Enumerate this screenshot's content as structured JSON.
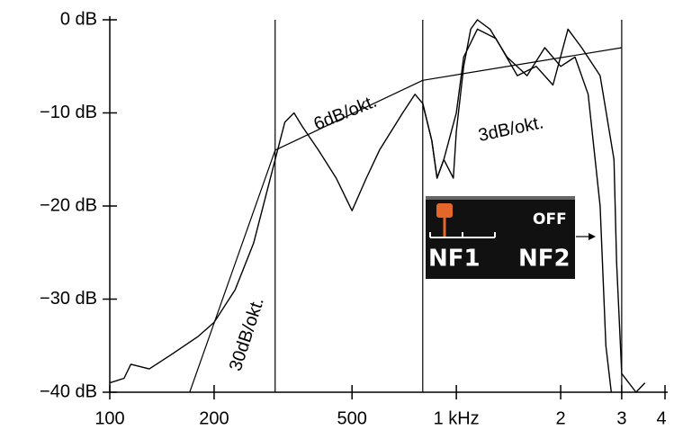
{
  "chart_data": {
    "type": "line",
    "log_x": true,
    "xlim": [
      100,
      4000
    ],
    "ylim": [
      -40,
      0
    ],
    "xticks": [
      100,
      200,
      500,
      {
        "value": 1000,
        "label": "1 kHz"
      },
      {
        "value": 2000,
        "label": "2"
      },
      {
        "value": 3000,
        "label": "3"
      },
      {
        "value": 4000,
        "label": "4"
      }
    ],
    "yticks": [
      {
        "value": 0,
        "label": "0 dB"
      },
      {
        "value": -10,
        "label": "−10 dB"
      },
      {
        "value": -20,
        "label": "−20 dB"
      },
      {
        "value": -30,
        "label": "−30 dB"
      },
      {
        "value": -40,
        "label": "−40 dB"
      }
    ],
    "vlines": [
      300,
      800,
      3000
    ],
    "series": [
      {
        "color": "#000000",
        "x": [
          100,
          110,
          115,
          130,
          150,
          180,
          200,
          230,
          260,
          300,
          320,
          340,
          360,
          400,
          450,
          500,
          550,
          600,
          700,
          760,
          800,
          850,
          880,
          920,
          980,
          1000,
          1050,
          1100,
          1150,
          1250,
          1400,
          1600,
          1800,
          2000,
          2200,
          2400,
          2600,
          2700,
          2800
        ],
        "values": [
          -39,
          -38.5,
          -37,
          -37.5,
          -36,
          -34,
          -32.5,
          -29,
          -24,
          -15,
          -11,
          -10,
          -11.5,
          -14,
          -17,
          -20.5,
          -17,
          -14,
          -10,
          -8,
          -9,
          -13,
          -17,
          -15,
          -17,
          -12,
          -5,
          -1,
          0,
          -1,
          -4,
          -6,
          -3,
          -5,
          -4,
          -8,
          -20,
          -35,
          -40
        ]
      },
      {
        "color": "#000000",
        "x": [
          800,
          850,
          880,
          920,
          1000,
          1050,
          1150,
          1300,
          1500,
          1700,
          1900,
          2100,
          2300,
          2600,
          2850,
          2900,
          3000,
          3300,
          3500
        ],
        "values": [
          -9,
          -13,
          -17,
          -15,
          -10,
          -4,
          -1,
          -2,
          -6,
          -5,
          -7,
          -1,
          -3,
          -6,
          -15,
          -26,
          -38,
          -40,
          -39
        ]
      }
    ],
    "slope_lines": [
      {
        "x": [
          170,
          300
        ],
        "values": [
          -40,
          -14
        ]
      },
      {
        "x": [
          300,
          800
        ],
        "values": [
          -14,
          -6.5
        ]
      },
      {
        "x": [
          800,
          3000
        ],
        "values": [
          -6.5,
          -3
        ]
      }
    ],
    "annotations": [
      "30dB/okt.",
      "6dB/okt.",
      "3dB/okt."
    ],
    "inset": {
      "status": "OFF",
      "left": "NF1",
      "right": "NF2"
    }
  }
}
